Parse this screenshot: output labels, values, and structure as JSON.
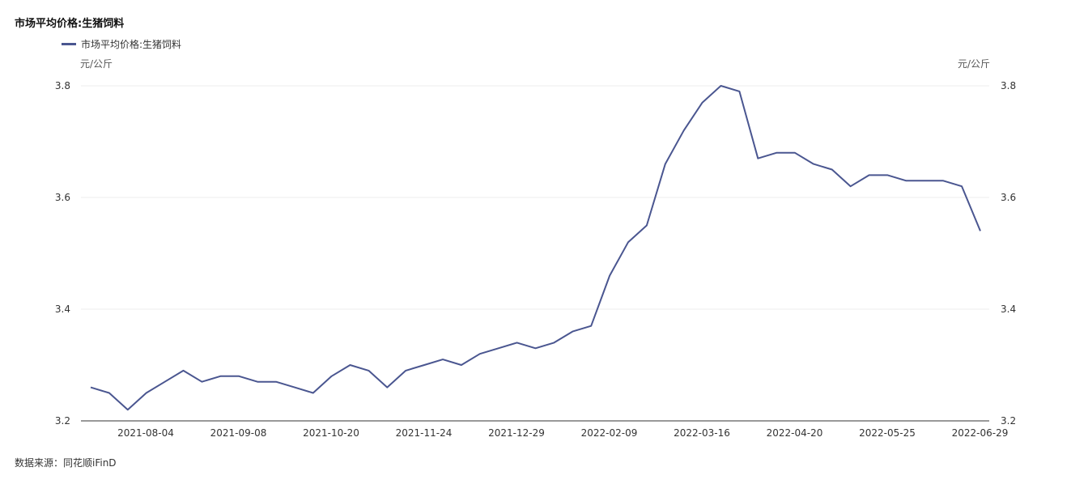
{
  "header": {
    "title": "市场平均价格:生猪饲料"
  },
  "colors": {
    "series": "#4a5690",
    "grid": "#ececec",
    "axis": "#333333"
  },
  "source": "数据来源：同花顺iFinD",
  "chart_data": {
    "type": "line",
    "title": "市场平均价格:生猪饲料",
    "yunit_left": "元/公斤",
    "yunit_right": "元/公斤",
    "ylim": [
      3.2,
      3.8
    ],
    "yticks": [
      "3.2",
      "3.4",
      "3.6",
      "3.8"
    ],
    "xtick_labels": [
      "2021-08-04",
      "2021-09-08",
      "2021-10-20",
      "2021-11-24",
      "2021-12-29",
      "2022-02-09",
      "2022-03-16",
      "2022-04-20",
      "2022-05-25",
      "2022-06-29"
    ],
    "legend": "top-left",
    "grid": true,
    "series": [
      {
        "name": "市场平均价格:生猪饲料",
        "values": [
          3.26,
          3.25,
          3.22,
          3.25,
          3.27,
          3.29,
          3.27,
          3.28,
          3.28,
          3.27,
          3.27,
          3.26,
          3.25,
          3.28,
          3.3,
          3.29,
          3.26,
          3.29,
          3.3,
          3.31,
          3.3,
          3.32,
          3.33,
          3.34,
          3.33,
          3.34,
          3.36,
          3.37,
          3.46,
          3.52,
          3.55,
          3.66,
          3.72,
          3.77,
          3.8,
          3.79,
          3.67,
          3.68,
          3.68,
          3.66,
          3.65,
          3.62,
          3.64,
          3.64,
          3.63,
          3.63,
          3.63,
          3.62,
          3.54
        ]
      }
    ]
  }
}
